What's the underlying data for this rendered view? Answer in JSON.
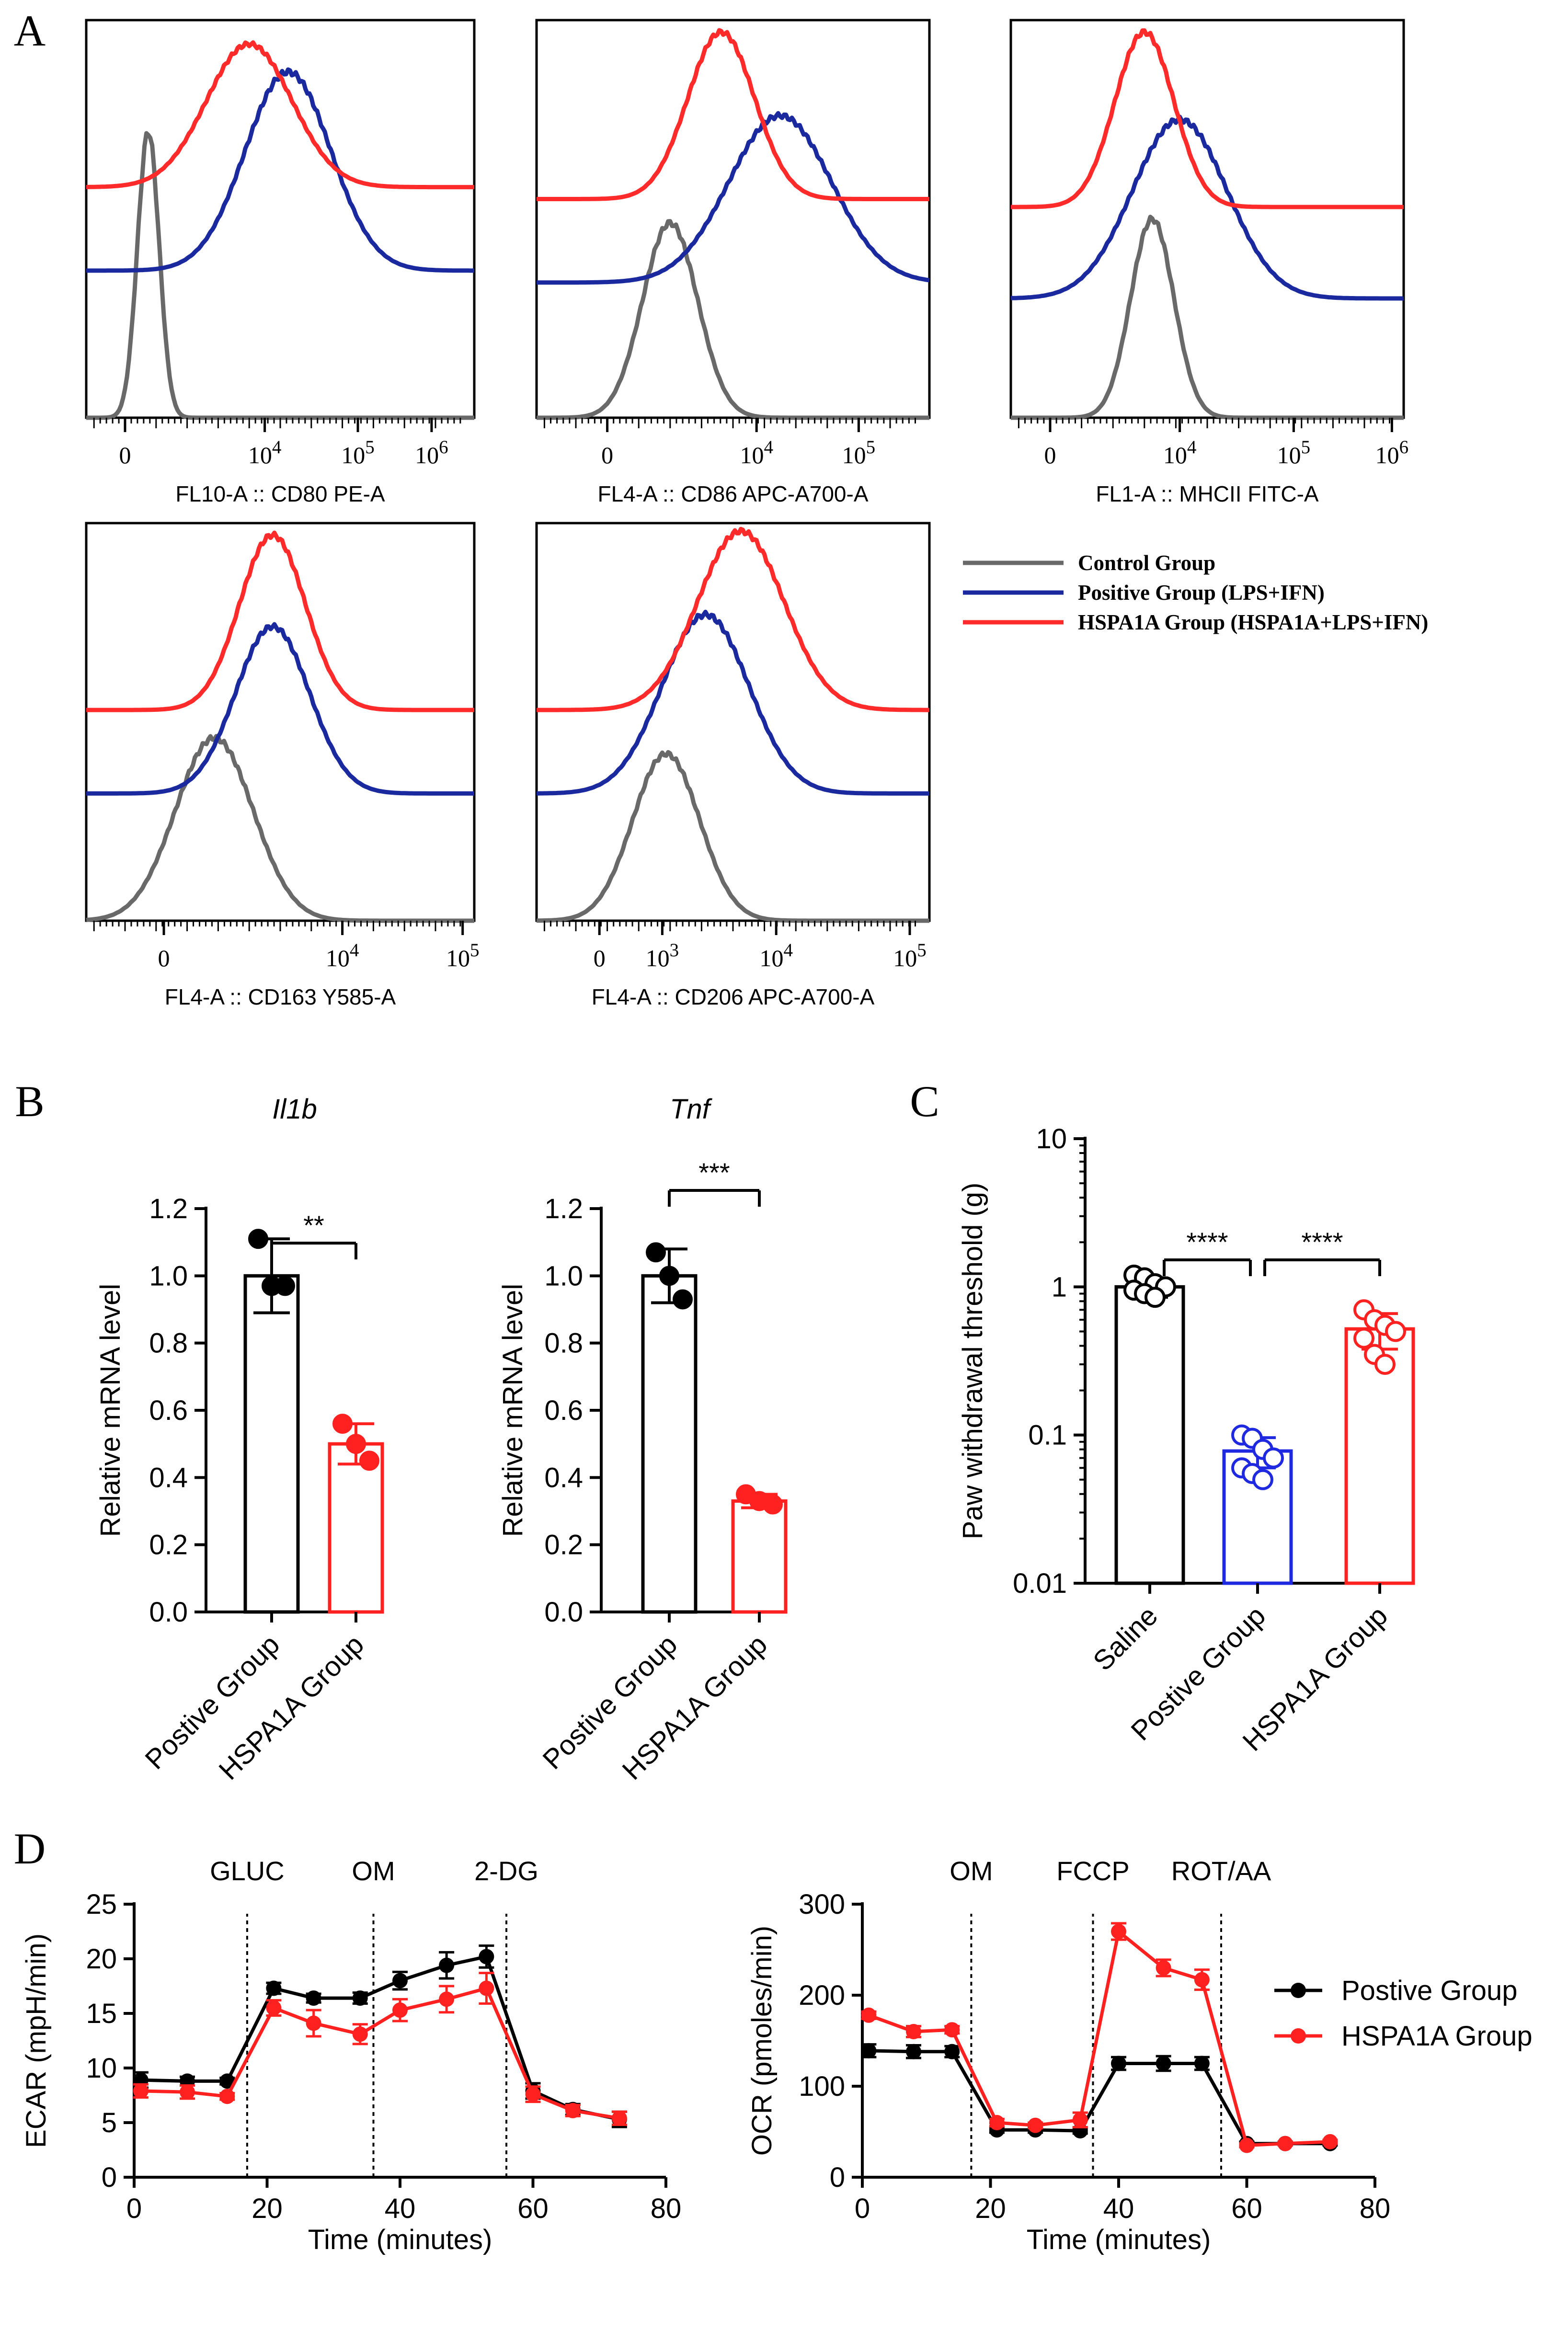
{
  "figure": {
    "panel_labels": [
      "A",
      "B",
      "C",
      "D"
    ]
  },
  "colors": {
    "control": "#696969",
    "positive": "#1a2a9e",
    "hspa1a": "#ff2b2b",
    "black": "#000000",
    "red": "#ff2020",
    "blue": "#1f2ae0"
  },
  "chart_data": [
    {
      "id": "A1",
      "type": "histogram-overlay",
      "xlabel": "FL10-A :: CD80 PE-A",
      "tick_labels": [
        {
          "base": "0"
        },
        {
          "base": "10",
          "exp": "4"
        },
        {
          "base": "10",
          "exp": "5"
        },
        {
          "base": "10",
          "exp": "6"
        }
      ],
      "series": [
        {
          "ref": "control",
          "peak_x": 0.16,
          "width": 0.028,
          "baseline": 1.0,
          "height": 0.72
        },
        {
          "ref": "positive",
          "peak_x": 0.52,
          "width": 0.11,
          "baseline": 0.63,
          "height": 0.5
        },
        {
          "ref": "hspa1a",
          "peak_x": 0.42,
          "width": 0.11,
          "baseline": 0.42,
          "height": 0.36
        }
      ]
    },
    {
      "id": "A2",
      "type": "histogram-overlay",
      "xlabel": "FL4-A :: CD86 APC-A700-A",
      "tick_labels": [
        {
          "base": "0"
        },
        {
          "base": "10",
          "exp": "4"
        },
        {
          "base": "10",
          "exp": "5"
        }
      ],
      "series": [
        {
          "ref": "control",
          "peak_x": 0.34,
          "width": 0.07,
          "baseline": 1.0,
          "height": 0.49
        },
        {
          "ref": "positive",
          "peak_x": 0.62,
          "width": 0.13,
          "baseline": 0.66,
          "height": 0.42
        },
        {
          "ref": "hspa1a",
          "peak_x": 0.47,
          "width": 0.085,
          "baseline": 0.45,
          "height": 0.42
        }
      ]
    },
    {
      "id": "A3",
      "type": "histogram-overlay",
      "xlabel": "FL1-A :: MHCII FITC-A",
      "tick_labels": [
        {
          "base": "0"
        },
        {
          "base": "10",
          "exp": "4"
        },
        {
          "base": "10",
          "exp": "5"
        },
        {
          "base": "10",
          "exp": "6"
        }
      ],
      "series": [
        {
          "ref": "control",
          "peak_x": 0.36,
          "width": 0.055,
          "baseline": 1.0,
          "height": 0.5
        },
        {
          "ref": "positive",
          "peak_x": 0.43,
          "width": 0.12,
          "baseline": 0.7,
          "height": 0.45
        },
        {
          "ref": "hspa1a",
          "peak_x": 0.34,
          "width": 0.075,
          "baseline": 0.47,
          "height": 0.44
        }
      ]
    },
    {
      "id": "A4",
      "type": "histogram-overlay",
      "xlabel": "FL4-A :: CD163 Y585-A",
      "tick_labels": [
        {
          "base": "0"
        },
        {
          "base": "10",
          "exp": "4"
        },
        {
          "base": "10",
          "exp": "5"
        }
      ],
      "series": [
        {
          "ref": "control",
          "peak_x": 0.33,
          "width": 0.1,
          "baseline": 1.0,
          "height": 0.46
        },
        {
          "ref": "positive",
          "peak_x": 0.48,
          "width": 0.095,
          "baseline": 0.68,
          "height": 0.42
        },
        {
          "ref": "hspa1a",
          "peak_x": 0.48,
          "width": 0.085,
          "baseline": 0.47,
          "height": 0.44
        }
      ]
    },
    {
      "id": "A5",
      "type": "histogram-overlay",
      "xlabel": "FL4-A :: CD206 APC-A700-A",
      "tick_labels": [
        {
          "base": "0"
        },
        {
          "base": "10",
          "exp": "3"
        },
        {
          "base": "10",
          "exp": "4"
        },
        {
          "base": "10",
          "exp": "5"
        }
      ],
      "series": [
        {
          "ref": "control",
          "peak_x": 0.33,
          "width": 0.085,
          "baseline": 1.0,
          "height": 0.42
        },
        {
          "ref": "positive",
          "peak_x": 0.43,
          "width": 0.11,
          "baseline": 0.68,
          "height": 0.45
        },
        {
          "ref": "hspa1a",
          "peak_x": 0.52,
          "width": 0.11,
          "baseline": 0.47,
          "height": 0.45
        }
      ]
    },
    {
      "id": "A-legend",
      "type": "legend",
      "entries": [
        {
          "ref": "control",
          "label": "Control Group"
        },
        {
          "ref": "positive",
          "label": "Positive Group (LPS+IFN)"
        },
        {
          "ref": "hspa1a",
          "label": "HSPA1A Group (HSPA1A+LPS+IFN)"
        }
      ]
    },
    {
      "id": "B1",
      "type": "bar",
      "title": "Il1b",
      "ylabel": "Relative mRNA level",
      "ylim": [
        0,
        1.2
      ],
      "yticks": [
        "0.0",
        "0.2",
        "0.4",
        "0.6",
        "0.8",
        "1.0",
        "1.2"
      ],
      "categories": [
        "Postive Group",
        "HSPA1A Group"
      ],
      "values": [
        1.0,
        0.5
      ],
      "errors": [
        0.11,
        0.06
      ],
      "points": [
        [
          1.11,
          0.97,
          0.97
        ],
        [
          0.56,
          0.5,
          0.45
        ]
      ],
      "bar_colors": [
        "black",
        "red"
      ],
      "significance": "**"
    },
    {
      "id": "B2",
      "type": "bar",
      "title": "Tnf",
      "ylabel": "Relative mRNA level",
      "ylim": [
        0,
        1.2
      ],
      "yticks": [
        "0.0",
        "0.2",
        "0.4",
        "0.6",
        "0.8",
        "1.0",
        "1.2"
      ],
      "categories": [
        "Postive Group",
        "HSPA1A Group"
      ],
      "values": [
        1.0,
        0.33
      ],
      "errors": [
        0.08,
        0.02
      ],
      "points": [
        [
          1.07,
          1.0,
          0.93
        ],
        [
          0.35,
          0.33,
          0.32
        ]
      ],
      "bar_colors": [
        "black",
        "red"
      ],
      "significance": "***"
    },
    {
      "id": "C",
      "type": "bar",
      "scale": "log",
      "ylabel": "Paw withdrawal threshold (g)",
      "ylim": [
        0.01,
        10
      ],
      "yticks": [
        "0.01",
        "0.1",
        "1",
        "10"
      ],
      "categories": [
        "Saline",
        "Postive Group",
        "HSPA1A Group"
      ],
      "values": [
        1.0,
        0.078,
        0.52
      ],
      "errors": [
        0.15,
        0.018,
        0.14
      ],
      "points": [
        [
          1.2,
          1.15,
          1.05,
          1.0,
          0.95,
          0.9,
          0.85
        ],
        [
          0.1,
          0.095,
          0.08,
          0.07,
          0.06,
          0.055,
          0.05
        ],
        [
          0.7,
          0.6,
          0.55,
          0.5,
          0.45,
          0.35,
          0.3
        ]
      ],
      "bar_colors": [
        "black",
        "blue",
        "red"
      ],
      "significance": [
        "****",
        "****"
      ]
    },
    {
      "id": "D1",
      "type": "line",
      "xlabel": "Time (minutes)",
      "ylabel": "ECAR (mpH/min)",
      "xlim": [
        0,
        80
      ],
      "ylim": [
        0,
        25
      ],
      "xticks": [
        "0",
        "20",
        "40",
        "60",
        "80"
      ],
      "yticks": [
        "0",
        "5",
        "10",
        "15",
        "20",
        "25"
      ],
      "annotations": [
        {
          "x": 17,
          "label": "GLUC"
        },
        {
          "x": 36,
          "label": "OM"
        },
        {
          "x": 56,
          "label": "2-DG"
        }
      ],
      "x": [
        1,
        8,
        14,
        21,
        27,
        34,
        40,
        47,
        53,
        60,
        66,
        73
      ],
      "series": [
        {
          "name": "Postive Group",
          "color": "black",
          "values": [
            8.9,
            8.8,
            8.8,
            17.3,
            16.4,
            16.4,
            18.0,
            19.4,
            20.2,
            7.9,
            6.2,
            5.3
          ],
          "errors": [
            0.7,
            0.4,
            0.3,
            0.5,
            0.4,
            0.5,
            0.8,
            1.2,
            1.0,
            0.7,
            0.5,
            0.7
          ]
        },
        {
          "name": "HSPA1A Group",
          "color": "red",
          "values": [
            7.9,
            7.8,
            7.4,
            15.5,
            14.1,
            13.1,
            15.3,
            16.3,
            17.3,
            7.6,
            6.1,
            5.4
          ],
          "errors": [
            0.6,
            0.6,
            0.3,
            0.7,
            1.2,
            0.9,
            1.0,
            1.2,
            1.4,
            0.7,
            0.5,
            0.6
          ]
        }
      ]
    },
    {
      "id": "D2",
      "type": "line",
      "xlabel": "Time (minutes)",
      "ylabel": "OCR (pmoles/min)",
      "xlim": [
        0,
        80
      ],
      "ylim": [
        0,
        300
      ],
      "xticks": [
        "0",
        "20",
        "40",
        "60",
        "80"
      ],
      "yticks": [
        "0",
        "100",
        "200",
        "300"
      ],
      "annotations": [
        {
          "x": 17,
          "label": "OM"
        },
        {
          "x": 36,
          "label": "FCCP"
        },
        {
          "x": 56,
          "label": "ROT/AA"
        }
      ],
      "x": [
        1,
        8,
        14,
        21,
        27,
        34,
        40,
        47,
        53,
        60,
        66,
        73
      ],
      "series": [
        {
          "name": "Postive Group",
          "color": "black",
          "values": [
            139,
            138,
            138,
            52,
            52,
            51,
            125,
            125,
            125,
            37,
            37,
            37
          ],
          "errors": [
            7,
            7,
            6,
            3,
            3,
            3,
            7,
            8,
            7,
            2,
            2,
            2
          ]
        },
        {
          "name": "HSPA1A Group",
          "color": "red",
          "values": [
            178,
            160,
            162,
            60,
            57,
            63,
            270,
            230,
            217,
            35,
            37,
            39
          ],
          "errors": [
            4,
            6,
            4,
            4,
            3,
            8,
            9,
            9,
            11,
            2,
            2,
            2
          ]
        }
      ]
    }
  ]
}
